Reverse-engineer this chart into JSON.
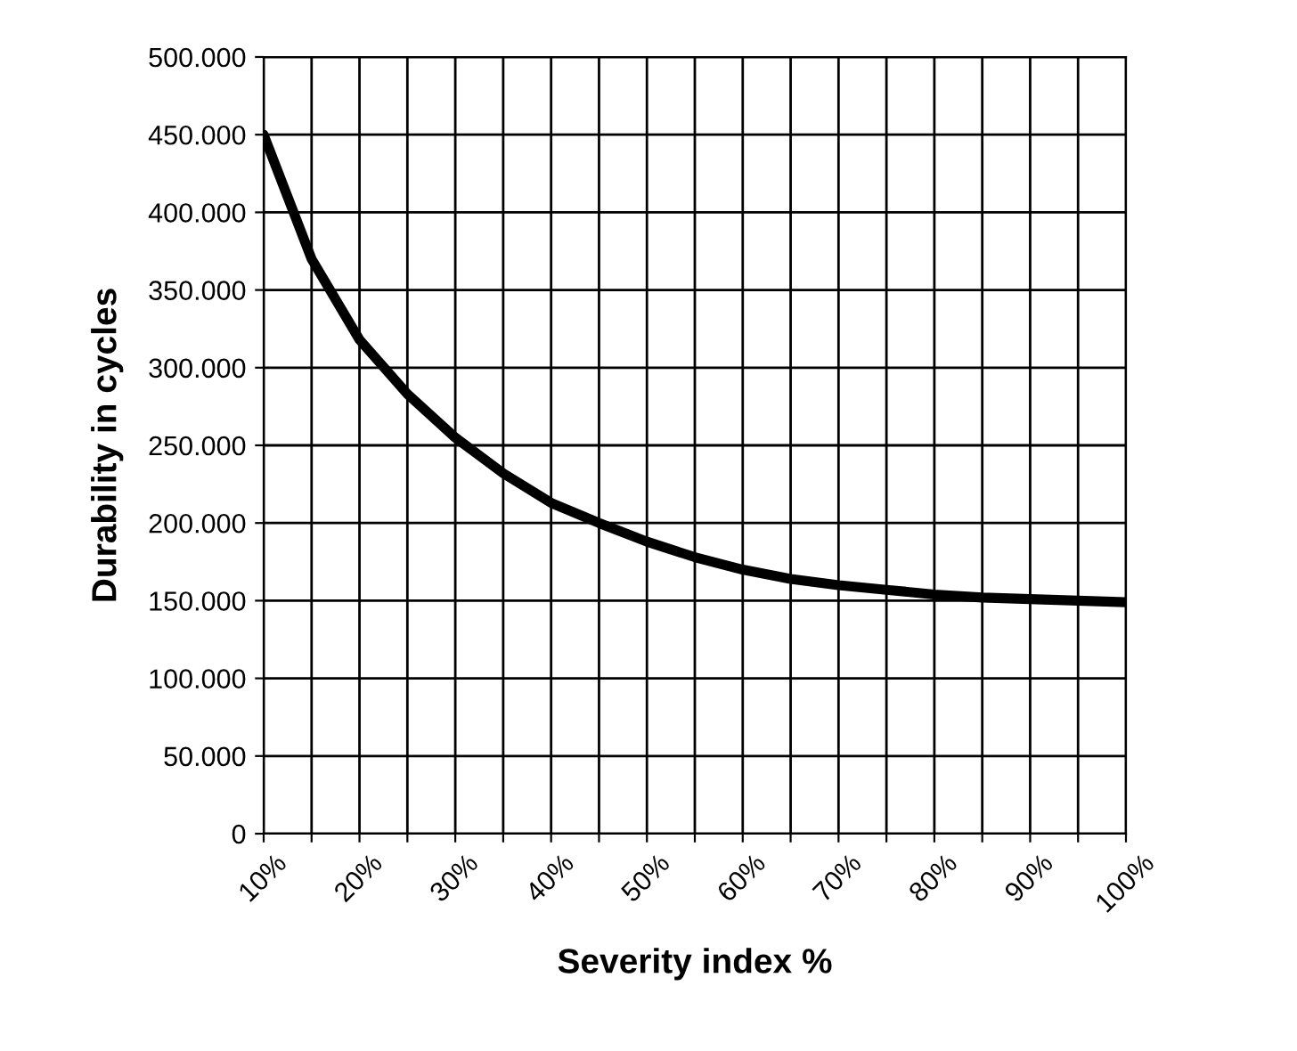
{
  "chart_data": {
    "type": "line",
    "xlabel": "Severity index %",
    "ylabel": "Durability in cycles",
    "x": [
      10,
      12.5,
      15,
      20,
      25,
      30,
      35,
      40,
      45,
      50,
      55,
      60,
      65,
      70,
      75,
      80,
      85,
      90,
      95,
      100
    ],
    "series": [
      {
        "color": "#000000",
        "values": [
          450000,
          410000,
          370000,
          318000,
          283000,
          255000,
          232000,
          213000,
          200000,
          188000,
          178000,
          170000,
          164000,
          160000,
          157000,
          154000,
          152000,
          151000,
          150000,
          149000
        ]
      }
    ],
    "xlim": [
      10,
      100
    ],
    "ylim": [
      0,
      500000
    ],
    "xticks": [
      {
        "value": 10,
        "label": "10%"
      },
      {
        "value": 15,
        "label": null
      },
      {
        "value": 20,
        "label": "20%"
      },
      {
        "value": 25,
        "label": null
      },
      {
        "value": 30,
        "label": "30%"
      },
      {
        "value": 35,
        "label": null
      },
      {
        "value": 40,
        "label": "40%"
      },
      {
        "value": 45,
        "label": null
      },
      {
        "value": 50,
        "label": "50%"
      },
      {
        "value": 55,
        "label": null
      },
      {
        "value": 60,
        "label": "60%"
      },
      {
        "value": 65,
        "label": null
      },
      {
        "value": 70,
        "label": "70%"
      },
      {
        "value": 75,
        "label": null
      },
      {
        "value": 80,
        "label": "80%"
      },
      {
        "value": 85,
        "label": null
      },
      {
        "value": 90,
        "label": "90%"
      },
      {
        "value": 95,
        "label": null
      },
      {
        "value": 100,
        "label": "100%"
      }
    ],
    "yticks": [
      0,
      {
        "value": 50000,
        "label": "50.000"
      },
      {
        "value": 100000,
        "label": "100.000"
      },
      {
        "value": 150000,
        "label": "150.000"
      },
      {
        "value": 200000,
        "label": "200.000"
      },
      {
        "value": 250000,
        "label": "250.000"
      },
      {
        "value": 300000,
        "label": "300.000"
      },
      {
        "value": 350000,
        "label": "350.000"
      },
      {
        "value": 400000,
        "label": "400.000"
      },
      {
        "value": 450000,
        "label": "450.000"
      },
      {
        "value": 500000,
        "label": "500.000"
      }
    ],
    "grid": true,
    "line_style": "solid",
    "marker": "none"
  }
}
